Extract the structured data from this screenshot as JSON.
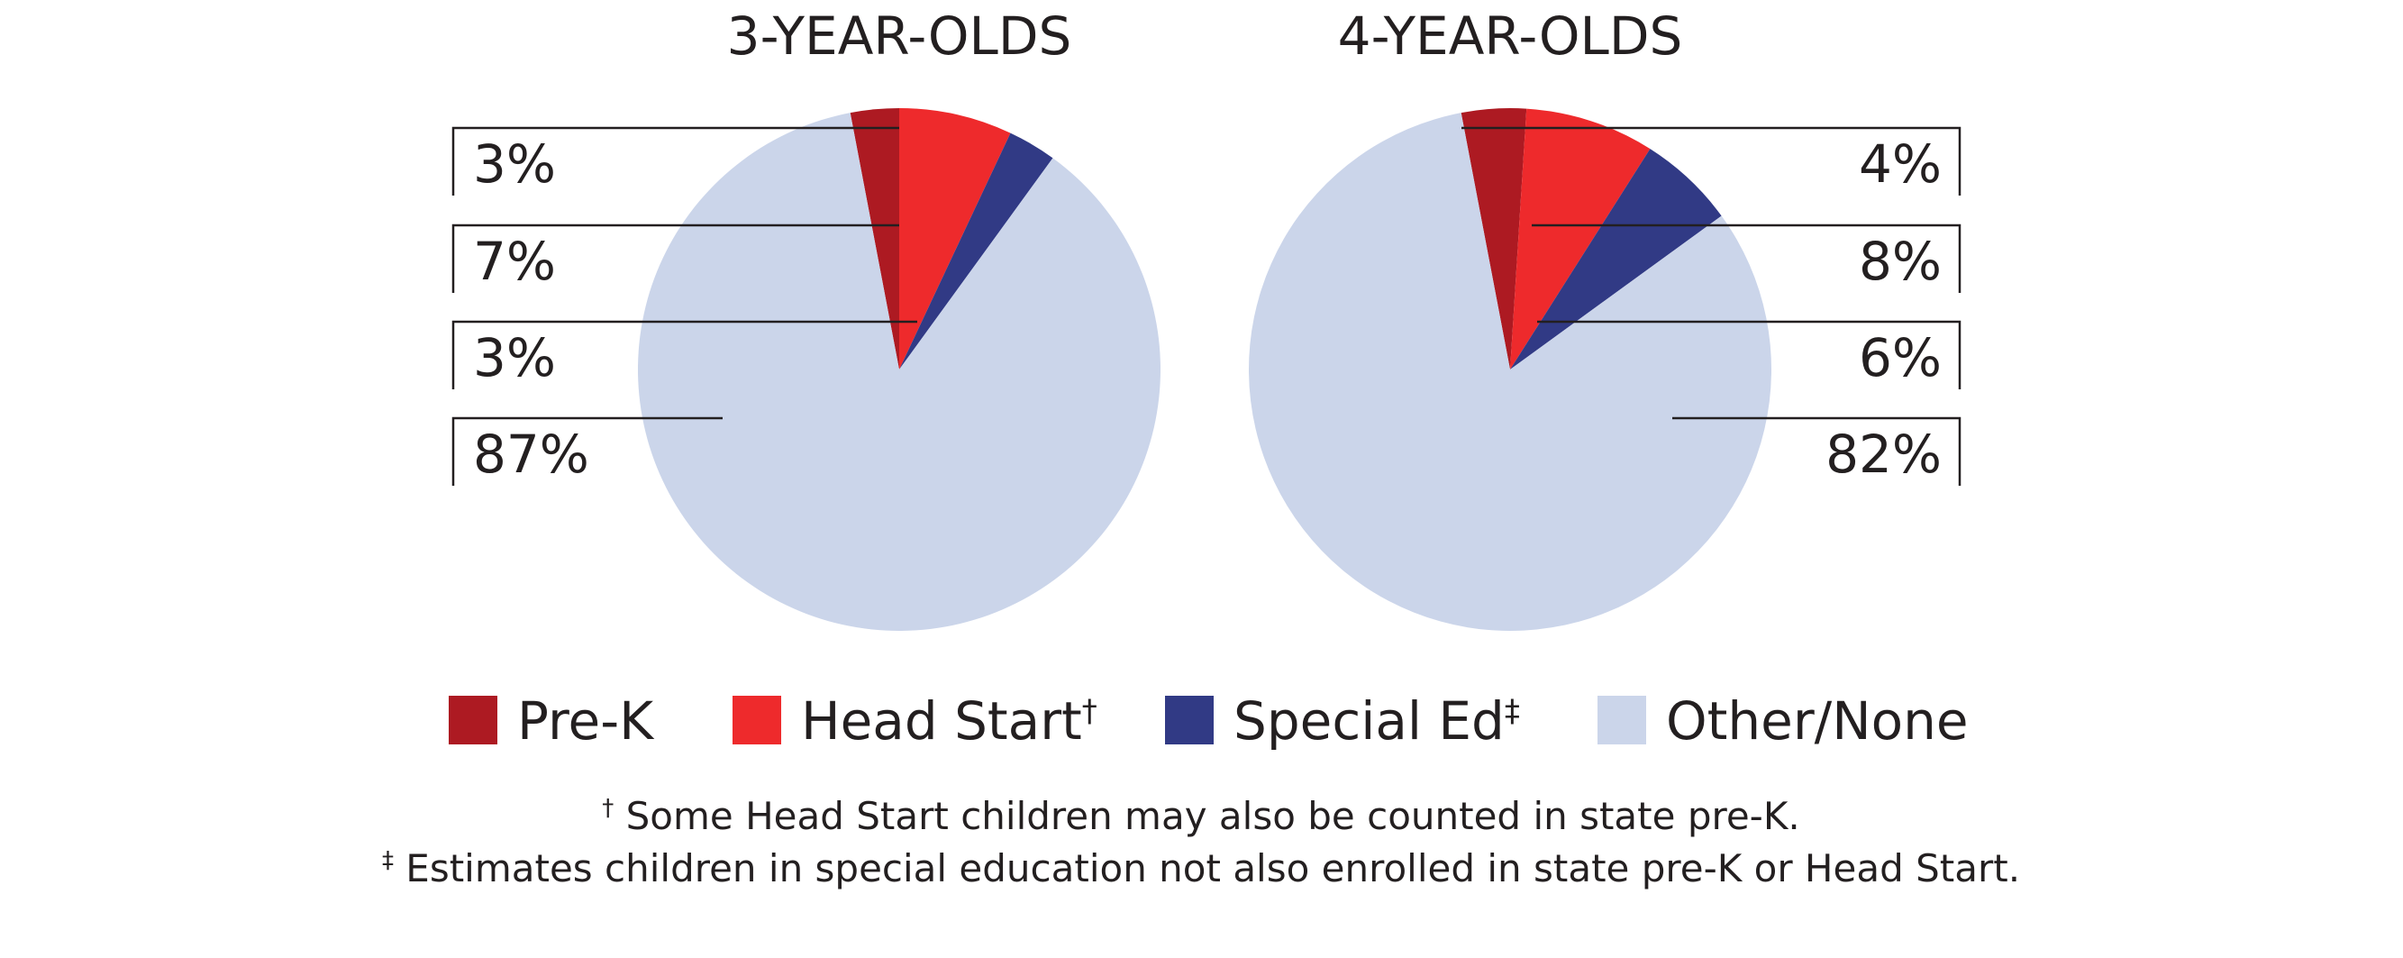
{
  "chart_data": {
    "type": "pie",
    "pies": [
      {
        "title": "3-YEAR-OLDS",
        "values": [
          3,
          7,
          3,
          87
        ],
        "labels": [
          "3%",
          "7%",
          "3%",
          "87%"
        ]
      },
      {
        "title": "4-YEAR-OLDS",
        "values": [
          4,
          8,
          6,
          82
        ],
        "labels": [
          "4%",
          "8%",
          "6%",
          "82%"
        ]
      }
    ],
    "legend": {
      "items": [
        {
          "label": "Pre-K",
          "mark": "",
          "color": "#ad1a22"
        },
        {
          "label": "Head Start",
          "mark": "†",
          "color": "#ee2a2c"
        },
        {
          "label": "Special Ed",
          "mark": "‡",
          "color": "#313a85"
        },
        {
          "label": "Other/None",
          "mark": "",
          "color": "#cbd5ea"
        }
      ],
      "position": "bottom"
    },
    "footnotes": [
      {
        "mark": "†",
        "text": " Some Head Start children may also be counted in state pre-K."
      },
      {
        "mark": "‡",
        "text": " Estimates children in special education not also enrolled in state pre-K or Head Start."
      }
    ]
  }
}
